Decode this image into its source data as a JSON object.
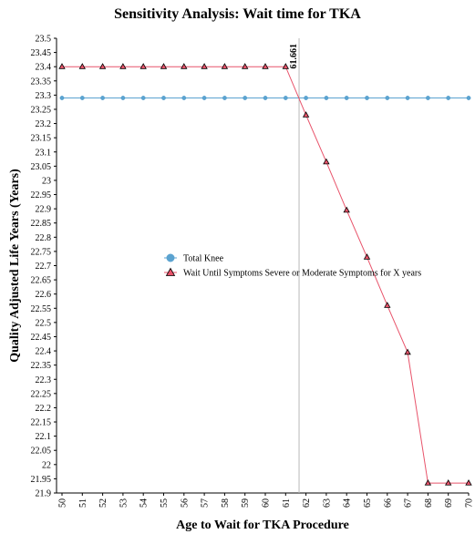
{
  "chart_data": {
    "type": "line",
    "title": "Sensitivity Analysis: Wait time for TKA",
    "xlabel": "Age to Wait for TKA Procedure",
    "ylabel": "Quality Adjusted Life Years (Years)",
    "x": [
      50,
      51,
      52,
      53,
      54,
      55,
      56,
      57,
      58,
      59,
      60,
      61,
      62,
      63,
      64,
      65,
      66,
      67,
      68,
      69,
      70
    ],
    "xlim": [
      50,
      70
    ],
    "ylim": [
      21.9,
      23.5
    ],
    "ytick_step": 0.05,
    "grid": false,
    "legend_position": "center",
    "series": [
      {
        "name": "Total Knee",
        "marker": "circle",
        "color": "#5ba3d0",
        "values": [
          23.29,
          23.29,
          23.29,
          23.29,
          23.29,
          23.29,
          23.29,
          23.29,
          23.29,
          23.29,
          23.29,
          23.29,
          23.29,
          23.29,
          23.29,
          23.29,
          23.29,
          23.29,
          23.29,
          23.29,
          23.29
        ]
      },
      {
        "name": "Wait Until Symptoms Severe or Moderate Symptoms for X years",
        "marker": "triangle",
        "color": "#e8536a",
        "values": [
          23.4,
          23.4,
          23.4,
          23.4,
          23.4,
          23.4,
          23.4,
          23.4,
          23.4,
          23.4,
          23.4,
          23.4,
          23.23,
          23.065,
          22.895,
          22.73,
          22.56,
          22.395,
          21.935,
          21.935,
          21.935
        ]
      }
    ],
    "threshold": {
      "x": 61.661,
      "label": "61.661"
    }
  }
}
